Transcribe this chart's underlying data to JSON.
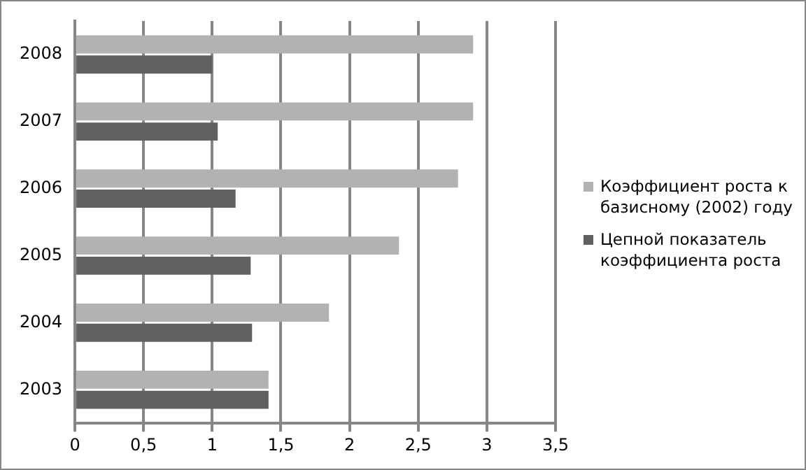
{
  "chart_data": {
    "type": "bar",
    "orientation": "horizontal",
    "categories": [
      "2008",
      "2007",
      "2006",
      "2005",
      "2004",
      "2003"
    ],
    "series": [
      {
        "name": "Коэффициент роста к базисному (2002) году",
        "color": "#b2b2b2",
        "values": [
          2.9,
          2.9,
          2.79,
          2.36,
          1.85,
          1.41
        ]
      },
      {
        "name": "Цепной показатель коэффициента роста",
        "color": "#606060",
        "values": [
          1.0,
          1.04,
          1.17,
          1.28,
          1.29,
          1.41
        ]
      }
    ],
    "xlim": [
      0,
      3.5
    ],
    "xticks": [
      {
        "value": 0,
        "label": "0"
      },
      {
        "value": 0.5,
        "label": "0,5"
      },
      {
        "value": 1,
        "label": "1"
      },
      {
        "value": 1.5,
        "label": "1,5"
      },
      {
        "value": 2,
        "label": "2"
      },
      {
        "value": 2.5,
        "label": "2,5"
      },
      {
        "value": 3,
        "label": "3"
      },
      {
        "value": 3.5,
        "label": "3,5"
      }
    ],
    "grid": "x",
    "legend": "right"
  }
}
